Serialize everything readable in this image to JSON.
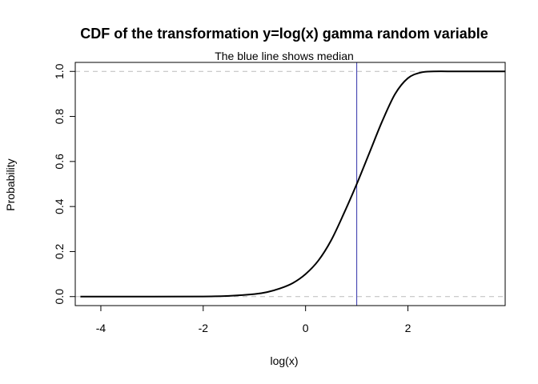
{
  "chart_data": {
    "type": "line",
    "title": "CDF of the transformation y=log(x) gamma random variable",
    "subtitle": "The blue line shows median",
    "xlabel": "log(x)",
    "ylabel": "Probability",
    "xlim": [
      -4.5,
      3.9
    ],
    "ylim": [
      -0.04,
      1.04
    ],
    "x_ticks": [
      -4,
      -2,
      0,
      2
    ],
    "x_tick_labels": [
      "-4",
      "-2",
      "0",
      "2"
    ],
    "y_ticks": [
      0.0,
      0.2,
      0.4,
      0.6,
      0.8,
      1.0
    ],
    "y_tick_labels": [
      "0.0",
      "0.2",
      "0.4",
      "0.6",
      "0.8",
      "1.0"
    ],
    "grid": false,
    "series": [
      {
        "color": "#000000",
        "x": [
          -4.4,
          -3.0,
          -2.0,
          -1.5,
          -1.0,
          -0.75,
          -0.5,
          -0.25,
          0.0,
          0.25,
          0.5,
          0.75,
          1.0,
          1.25,
          1.5,
          1.75,
          2.0,
          2.25,
          2.5,
          3.0,
          3.9
        ],
        "y": [
          0.0,
          0.0,
          0.0005,
          0.003,
          0.011,
          0.02,
          0.036,
          0.06,
          0.1,
          0.16,
          0.25,
          0.37,
          0.5,
          0.64,
          0.78,
          0.9,
          0.97,
          0.995,
          1.0,
          1.0,
          1.0
        ]
      }
    ],
    "reference_lines": [
      {
        "orientation": "horizontal",
        "value": 0.0,
        "color": "#bbbbbb",
        "style": "dashed"
      },
      {
        "orientation": "horizontal",
        "value": 1.0,
        "color": "#bbbbbb",
        "style": "dashed"
      },
      {
        "orientation": "vertical",
        "value": 1.0,
        "color": "#3333aa",
        "style": "solid",
        "meaning": "median"
      }
    ]
  }
}
